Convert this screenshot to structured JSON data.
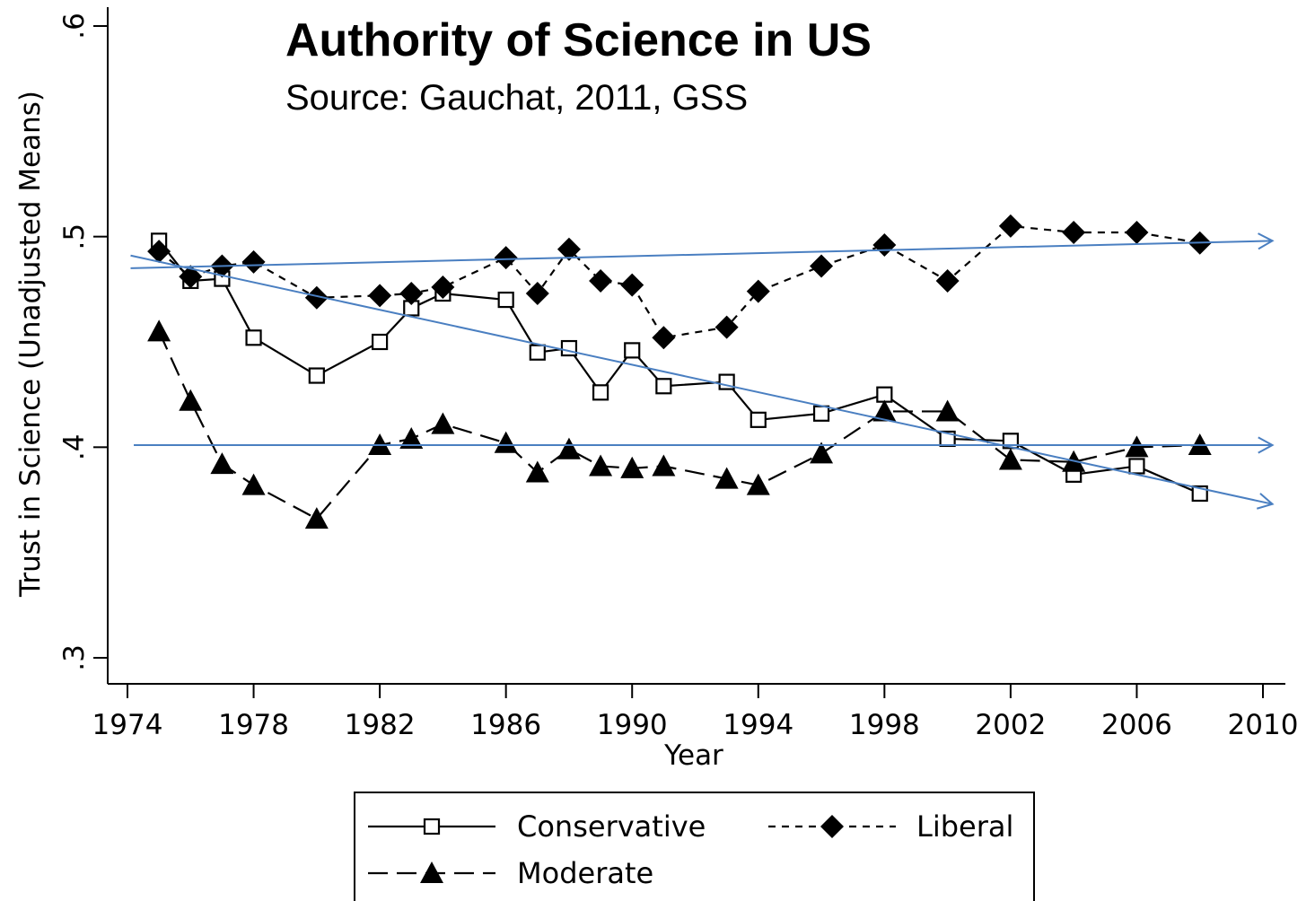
{
  "chart_data": {
    "type": "line",
    "title": "Authority of Science in US",
    "subtitle": "Source: Gauchat, 2011, GSS",
    "xlabel": "Year",
    "ylabel": "Trust in Science (Unadjusted Means)",
    "xlim": [
      1974,
      2010
    ],
    "ylim": [
      0.3,
      0.6
    ],
    "xticks": [
      1974,
      1978,
      1982,
      1986,
      1990,
      1994,
      1998,
      2002,
      2006,
      2010
    ],
    "xtick_labels": [
      "1974",
      "1978",
      "1982",
      "1986",
      "1990",
      "1994",
      "1998",
      "2002",
      "2006",
      "2010"
    ],
    "yticks": [
      0.3,
      0.4,
      0.5,
      0.6
    ],
    "ytick_labels": [
      ".3",
      ".4",
      ".5",
      ".6"
    ],
    "grid": false,
    "legend_position": "bottom",
    "series": [
      {
        "name": "Conservative",
        "line_style": "solid",
        "marker": "hollow-square",
        "color": "#000000",
        "x": [
          1975,
          1976,
          1977,
          1978,
          1980,
          1982,
          1983,
          1984,
          1986,
          1987,
          1988,
          1989,
          1990,
          1991,
          1993,
          1994,
          1996,
          1998,
          2000,
          2002,
          2004,
          2006,
          2008
        ],
        "values": [
          0.498,
          0.479,
          0.48,
          0.452,
          0.434,
          0.45,
          0.466,
          0.473,
          0.47,
          0.445,
          0.447,
          0.426,
          0.446,
          0.429,
          0.431,
          0.413,
          0.416,
          0.425,
          0.404,
          0.403,
          0.387,
          0.391,
          0.378
        ]
      },
      {
        "name": "Liberal",
        "line_style": "short-dash",
        "marker": "filled-diamond",
        "color": "#000000",
        "x": [
          1975,
          1976,
          1977,
          1978,
          1980,
          1982,
          1983,
          1984,
          1986,
          1987,
          1988,
          1989,
          1990,
          1991,
          1993,
          1994,
          1996,
          1998,
          2000,
          2002,
          2004,
          2006,
          2008
        ],
        "values": [
          0.493,
          0.481,
          0.486,
          0.488,
          0.471,
          0.472,
          0.473,
          0.476,
          0.49,
          0.473,
          0.494,
          0.479,
          0.477,
          0.452,
          0.457,
          0.474,
          0.486,
          0.496,
          0.479,
          0.505,
          0.502,
          0.502,
          0.497
        ]
      },
      {
        "name": "Moderate",
        "line_style": "long-dash",
        "marker": "filled-triangle",
        "color": "#000000",
        "x": [
          1975,
          1976,
          1977,
          1978,
          1980,
          1982,
          1983,
          1984,
          1986,
          1987,
          1988,
          1989,
          1990,
          1991,
          1993,
          1994,
          1996,
          1998,
          2000,
          2002,
          2004,
          2006,
          2008
        ],
        "values": [
          0.455,
          0.422,
          0.392,
          0.382,
          0.366,
          0.401,
          0.404,
          0.411,
          0.402,
          0.388,
          0.399,
          0.391,
          0.39,
          0.391,
          0.385,
          0.382,
          0.397,
          0.417,
          0.417,
          0.394,
          0.393,
          0.4,
          0.401
        ]
      }
    ],
    "trend_arrows": [
      {
        "color": "#4a7fc1",
        "from": {
          "x": 1974.1,
          "y": 0.485
        },
        "to": {
          "x": 2010.3,
          "y": 0.498
        }
      },
      {
        "color": "#4a7fc1",
        "from": {
          "x": 1974.1,
          "y": 0.491
        },
        "to": {
          "x": 2010.3,
          "y": 0.373
        }
      },
      {
        "color": "#4a7fc1",
        "from": {
          "x": 1974.2,
          "y": 0.401
        },
        "to": {
          "x": 2010.3,
          "y": 0.401
        }
      }
    ]
  }
}
